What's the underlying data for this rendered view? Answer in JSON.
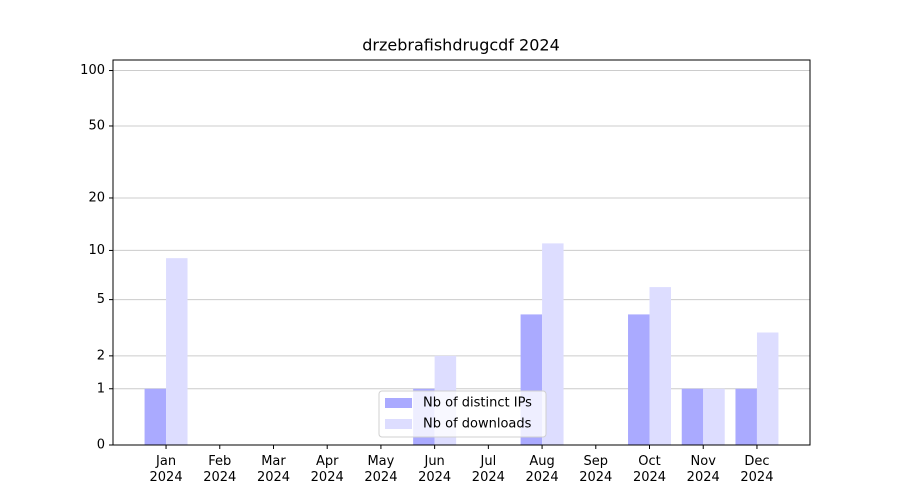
{
  "chart_data": {
    "type": "bar",
    "title": "drzebrafishdrugcdf 2024",
    "categories": [
      "Jan 2024",
      "Feb 2024",
      "Mar 2024",
      "Apr 2024",
      "May 2024",
      "Jun 2024",
      "Jul 2024",
      "Aug 2024",
      "Sep 2024",
      "Oct 2024",
      "Nov 2024",
      "Dec 2024"
    ],
    "series": [
      {
        "name": "Nb of distinct IPs",
        "color": "#aaaaff",
        "values": [
          1,
          0,
          0,
          0,
          0,
          1,
          0,
          4,
          0,
          4,
          1,
          1
        ]
      },
      {
        "name": "Nb of downloads",
        "color": "#ddddff",
        "values": [
          9,
          0,
          0,
          0,
          0,
          2,
          0,
          11,
          0,
          6,
          1,
          3
        ]
      }
    ],
    "y_scale": "log1p",
    "ylim": [
      0,
      114
    ],
    "yticks": [
      0,
      1,
      2,
      5,
      10,
      20,
      50,
      100
    ],
    "grid": true,
    "legend": "lower center"
  }
}
